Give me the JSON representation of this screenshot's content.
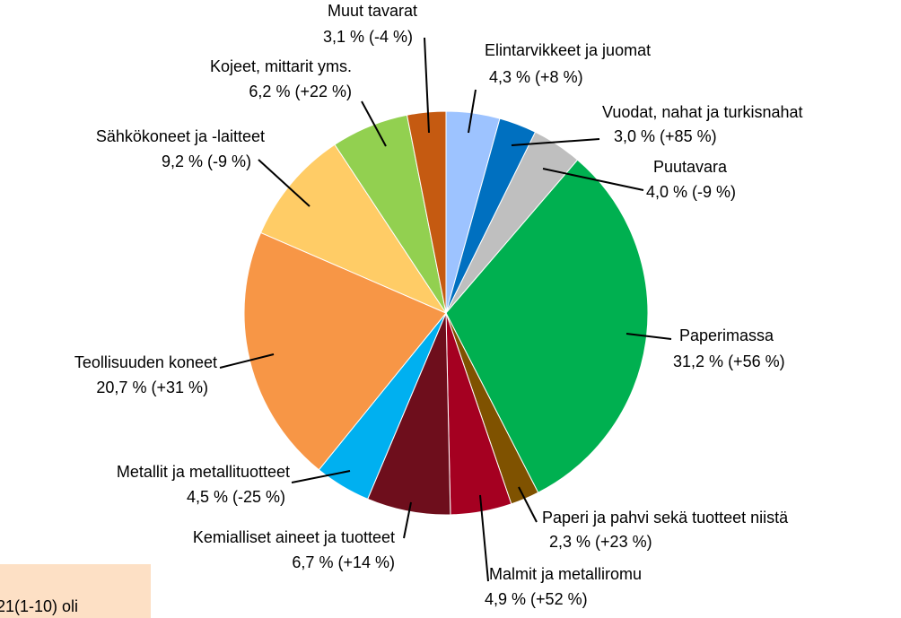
{
  "chart_data": {
    "type": "pie",
    "categories": [
      "Elintarvikkeet ja juomat",
      "Vuodat, nahat ja turkisnahat",
      "Puutavara",
      "Paperimassa",
      "Paperi ja pahvi sekä tuotteet niistä",
      "Malmit ja metalliromu",
      "Kemialliset aineet ja tuotteet",
      "Metallit ja metallituotteet",
      "Teollisuuden koneet",
      "Sähkökoneet ja -laitteet",
      "Kojeet, mittarit yms.",
      "Muut tavarat"
    ],
    "values": [
      4.3,
      3.0,
      4.0,
      31.2,
      2.3,
      4.9,
      6.7,
      4.5,
      20.7,
      9.2,
      6.2,
      3.1
    ],
    "value_labels": [
      "4,3 %",
      "3,0 %",
      "4,0 %",
      "31,2 %",
      "2,3 %",
      "4,9 %",
      "6,7 %",
      "4,5 %",
      "20,7 %",
      "9,2 %",
      "6,2 %",
      "3,1 %"
    ],
    "change_labels": [
      "(+8 %)",
      "(+85 %)",
      "(-9 %)",
      "(+56 %)",
      "(+23 %)",
      "(+52 %)",
      "(+14 %)",
      "(-25 %)",
      "(+31 %)",
      "(-9 %)",
      "(+22 %)",
      "(-4 %)"
    ],
    "colors": [
      "#9dc3ff",
      "#0070c0",
      "#bfbfbf",
      "#00b050",
      "#7f5200",
      "#a50021",
      "#6e0e1c",
      "#00b0f0",
      "#f79646",
      "#ffcc66",
      "#92d050",
      "#c55a11"
    ],
    "note": "21(1-10) oli"
  }
}
